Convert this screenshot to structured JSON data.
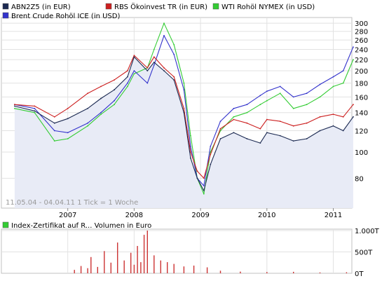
{
  "chart_data": [
    {
      "type": "line",
      "legend_placement": "top-left",
      "legend": [
        {
          "name": "ABN2Z5 (in EUR)",
          "color": "#1c2a52"
        },
        {
          "name": "RBS Ökoinvest TR (in EUR)",
          "color": "#cc1f1f"
        },
        {
          "name": "WTI Rohöl NYMEX (in USD)",
          "color": "#33cc33"
        },
        {
          "name": "Brent Crude Rohöl ICE (in USD)",
          "color": "#3333cc"
        }
      ],
      "note": "11.05.04 - 04.04.11   1 Tick = 1 Woche",
      "x_ticks": [
        "2007",
        "2008",
        "2009",
        "2010",
        "2011"
      ],
      "y_scale": "log",
      "ylim": [
        62,
        315
      ],
      "y_ticks": [
        "300",
        "280",
        "260",
        "240",
        "220",
        "200",
        "180",
        "160",
        "140",
        "120",
        "100",
        "80"
      ],
      "grid": true,
      "series": [
        {
          "name": "ABN2Z5 (in EUR)",
          "color": "#1c2a52",
          "x": [
            2006.2,
            2006.5,
            2006.8,
            2007.0,
            2007.3,
            2007.5,
            2007.7,
            2007.9,
            2008.0,
            2008.2,
            2008.3,
            2008.45,
            2008.6,
            2008.75,
            2008.85,
            2008.95,
            2009.05,
            2009.15,
            2009.3,
            2009.5,
            2009.7,
            2009.9,
            2010.0,
            2010.2,
            2010.4,
            2010.6,
            2010.8,
            2011.0,
            2011.15,
            2011.3
          ],
          "values": [
            148,
            142,
            128,
            133,
            145,
            158,
            170,
            190,
            225,
            200,
            215,
            200,
            185,
            140,
            95,
            80,
            72,
            90,
            112,
            118,
            112,
            108,
            118,
            115,
            110,
            112,
            120,
            125,
            120,
            135
          ]
        },
        {
          "name": "RBS Ökoinvest TR (in EUR)",
          "color": "#cc1f1f",
          "x": [
            2006.2,
            2006.5,
            2006.8,
            2007.0,
            2007.3,
            2007.5,
            2007.7,
            2007.9,
            2008.0,
            2008.2,
            2008.3,
            2008.45,
            2008.6,
            2008.75,
            2008.85,
            2008.95,
            2009.05,
            2009.15,
            2009.3,
            2009.5,
            2009.7,
            2009.9,
            2010.0,
            2010.2,
            2010.4,
            2010.6,
            2010.8,
            2011.0,
            2011.15,
            2011.3
          ],
          "values": [
            150,
            148,
            135,
            145,
            165,
            175,
            185,
            200,
            228,
            205,
            225,
            205,
            190,
            145,
            100,
            85,
            80,
            98,
            122,
            132,
            128,
            122,
            132,
            130,
            125,
            128,
            135,
            138,
            135,
            150
          ]
        },
        {
          "name": "WTI Rohöl NYMEX (in USD)",
          "color": "#33cc33",
          "x": [
            2006.2,
            2006.5,
            2006.8,
            2007.0,
            2007.3,
            2007.5,
            2007.7,
            2007.9,
            2008.0,
            2008.2,
            2008.3,
            2008.45,
            2008.6,
            2008.75,
            2008.85,
            2008.95,
            2009.05,
            2009.15,
            2009.3,
            2009.5,
            2009.7,
            2009.9,
            2010.0,
            2010.2,
            2010.4,
            2010.6,
            2010.8,
            2011.0,
            2011.15,
            2011.3
          ],
          "values": [
            145,
            140,
            110,
            112,
            125,
            138,
            150,
            175,
            195,
            205,
            240,
            300,
            250,
            180,
            115,
            80,
            70,
            100,
            120,
            135,
            140,
            150,
            155,
            165,
            145,
            150,
            160,
            175,
            180,
            220
          ]
        },
        {
          "name": "Brent Crude Rohöl ICE (in USD)",
          "color": "#3333cc",
          "x": [
            2006.2,
            2006.5,
            2006.8,
            2007.0,
            2007.3,
            2007.5,
            2007.7,
            2007.9,
            2008.0,
            2008.2,
            2008.3,
            2008.45,
            2008.6,
            2008.75,
            2008.85,
            2008.95,
            2009.05,
            2009.15,
            2009.3,
            2009.5,
            2009.7,
            2009.9,
            2010.0,
            2010.2,
            2010.4,
            2010.6,
            2010.8,
            2011.0,
            2011.15,
            2011.3
          ],
          "values": [
            150,
            145,
            120,
            118,
            128,
            140,
            155,
            180,
            200,
            180,
            210,
            270,
            230,
            170,
            105,
            80,
            75,
            105,
            130,
            145,
            150,
            162,
            168,
            175,
            160,
            165,
            178,
            190,
            200,
            245
          ]
        }
      ]
    },
    {
      "type": "bar",
      "legend": [
        {
          "name": "Index-Zertifikat auf R... Volumen in Euro",
          "color": "#33cc33"
        }
      ],
      "y_ticks": [
        "1.000T",
        "500T",
        "0T"
      ],
      "ylim": [
        0,
        1000
      ],
      "bar_color": "#cc3333",
      "x": [
        2007.1,
        2007.2,
        2007.3,
        2007.35,
        2007.45,
        2007.55,
        2007.65,
        2007.75,
        2007.85,
        2007.95,
        2008.0,
        2008.05,
        2008.1,
        2008.15,
        2008.2,
        2008.3,
        2008.4,
        2008.5,
        2008.6,
        2008.75,
        2008.9,
        2009.1,
        2009.3,
        2009.6,
        2010.0,
        2010.4,
        2010.8,
        2011.2
      ],
      "values": [
        80,
        170,
        120,
        380,
        150,
        520,
        250,
        720,
        300,
        480,
        200,
        640,
        260,
        900,
        1000,
        420,
        300,
        260,
        220,
        160,
        180,
        140,
        60,
        40,
        30,
        35,
        20,
        25
      ]
    }
  ]
}
